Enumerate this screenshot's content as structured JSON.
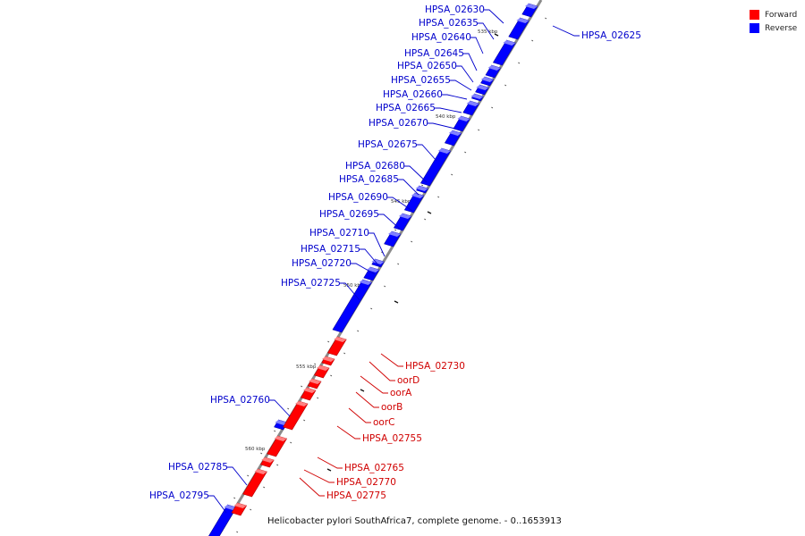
{
  "legend": [
    {
      "label": "Forward",
      "color": "#ff0000"
    },
    {
      "label": "Reverse",
      "color": "#0000ff"
    }
  ],
  "caption": "Helicobacter pylori SouthAfrica7, complete genome. - 0..1653913",
  "ticks": [
    "535 kbp",
    "540 kbp",
    "545 kbp",
    "550 kbp",
    "555 kbp",
    "560 kbp"
  ],
  "genes": [
    {
      "name": "HPSA_02630",
      "strand": "reverse"
    },
    {
      "name": "HPSA_02625",
      "strand": "reverse"
    },
    {
      "name": "HPSA_02635",
      "strand": "reverse"
    },
    {
      "name": "HPSA_02640",
      "strand": "reverse"
    },
    {
      "name": "HPSA_02645",
      "strand": "reverse"
    },
    {
      "name": "HPSA_02650",
      "strand": "reverse"
    },
    {
      "name": "HPSA_02655",
      "strand": "reverse"
    },
    {
      "name": "HPSA_02660",
      "strand": "reverse"
    },
    {
      "name": "HPSA_02665",
      "strand": "reverse"
    },
    {
      "name": "HPSA_02670",
      "strand": "reverse"
    },
    {
      "name": "HPSA_02675",
      "strand": "reverse"
    },
    {
      "name": "HPSA_02680",
      "strand": "reverse"
    },
    {
      "name": "HPSA_02685",
      "strand": "reverse"
    },
    {
      "name": "HPSA_02690",
      "strand": "reverse"
    },
    {
      "name": "HPSA_02695",
      "strand": "reverse"
    },
    {
      "name": "HPSA_02710",
      "strand": "reverse"
    },
    {
      "name": "HPSA_02715",
      "strand": "reverse"
    },
    {
      "name": "HPSA_02720",
      "strand": "reverse"
    },
    {
      "name": "HPSA_02725",
      "strand": "reverse"
    },
    {
      "name": "HPSA_02730",
      "strand": "forward"
    },
    {
      "name": "oorD",
      "strand": "forward"
    },
    {
      "name": "oorA",
      "strand": "forward"
    },
    {
      "name": "oorB",
      "strand": "forward"
    },
    {
      "name": "oorC",
      "strand": "forward"
    },
    {
      "name": "HPSA_02755",
      "strand": "forward"
    },
    {
      "name": "HPSA_02760",
      "strand": "reverse"
    },
    {
      "name": "HPSA_02765",
      "strand": "forward"
    },
    {
      "name": "HPSA_02770",
      "strand": "forward"
    },
    {
      "name": "HPSA_02775",
      "strand": "forward"
    },
    {
      "name": "HPSA_02785",
      "strand": "reverse"
    },
    {
      "name": "HPSA_02795",
      "strand": "reverse"
    }
  ]
}
